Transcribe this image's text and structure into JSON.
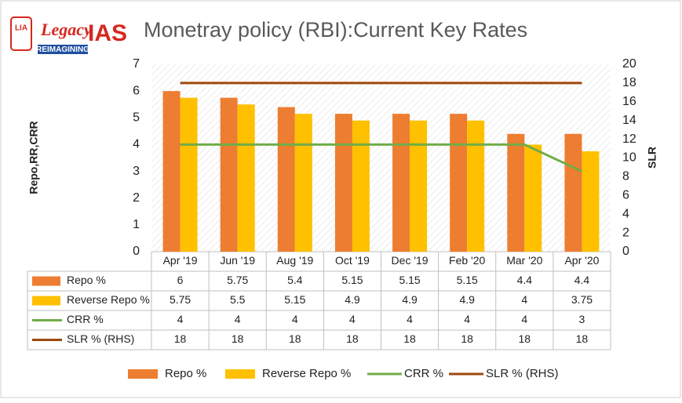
{
  "logo": {
    "badge": "LIA",
    "word": "Legacy",
    "brand": "IAS",
    "tagline": "REIMAGINING"
  },
  "chart_data": {
    "type": "bar",
    "title": "Monetray policy (RBI):Current Key Rates",
    "y_label": "Repo,RR,CRR",
    "y2_label": "SLR",
    "categories": [
      "Apr '19",
      "Jun '19",
      "Aug '19",
      "Oct '19",
      "Dec '19",
      "Feb '20",
      "Mar '20",
      "Apr '20"
    ],
    "series": [
      {
        "name": "Repo %",
        "type": "bar",
        "color": "#ED7D31",
        "values": [
          6,
          5.75,
          5.4,
          5.15,
          5.15,
          5.15,
          4.4,
          4.4
        ]
      },
      {
        "name": "Reverse Repo %",
        "type": "bar",
        "color": "#FFC000",
        "values": [
          5.75,
          5.5,
          5.15,
          4.9,
          4.9,
          4.9,
          4,
          3.75
        ]
      },
      {
        "name": "CRR %",
        "type": "line",
        "color": "#70AD47",
        "values": [
          4,
          4,
          4,
          4,
          4,
          4,
          4,
          3
        ]
      },
      {
        "name": "SLR % (RHS)",
        "type": "line",
        "axis": "y2",
        "color": "#9E480E",
        "values": [
          18,
          18,
          18,
          18,
          18,
          18,
          18,
          18
        ]
      }
    ],
    "ylim": [
      0,
      7
    ],
    "yticks": [
      0,
      1,
      2,
      3,
      4,
      5,
      6,
      7
    ],
    "y2lim": [
      0,
      20
    ],
    "y2ticks": [
      0,
      2,
      4,
      6,
      8,
      10,
      12,
      14,
      16,
      18,
      20
    ],
    "grid": false,
    "legend": "bottom"
  }
}
